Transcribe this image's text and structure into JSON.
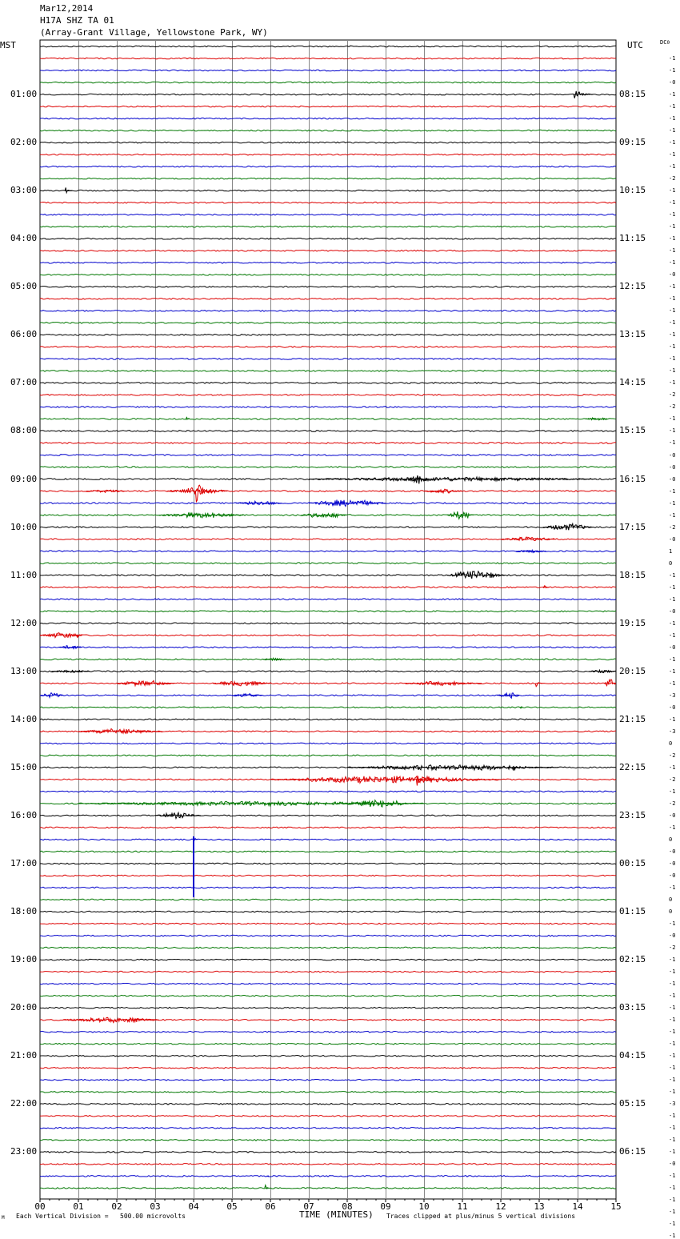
{
  "header": {
    "date": "Mar12,2014",
    "station": "H17A SHZ TA 01",
    "location": "(Array-Grant Village, Yellowstone Park, WY)"
  },
  "left_axis_label": "MST",
  "right_axis_label": "UTC",
  "dc_label": "DC",
  "dc_first": "0",
  "footer": {
    "scale_note": "Each Vertical Division =   500.00 microvolts",
    "xlabel": "TIME (MINUTES)",
    "clip_note": "Traces clipped at plus/minus 5 vertical divisions",
    "corner_mark": "M"
  },
  "chart_data": {
    "type": "seismogram",
    "trace_colors": [
      "#000000",
      "#dd0000",
      "#0000cc",
      "#007700"
    ],
    "rows_per_hour": 4,
    "minutes_per_row": 15,
    "xlim": [
      0,
      15
    ],
    "x_ticks": [
      "00",
      "01",
      "02",
      "03",
      "04",
      "05",
      "06",
      "07",
      "08",
      "09",
      "10",
      "11",
      "12",
      "13",
      "14",
      "15"
    ],
    "left_hour_labels": [
      "01:00",
      "02:00",
      "03:00",
      "04:00",
      "05:00",
      "06:00",
      "07:00",
      "08:00",
      "09:00",
      "10:00",
      "11:00",
      "12:00",
      "13:00",
      "14:00",
      "15:00",
      "16:00",
      "17:00",
      "18:00",
      "19:00",
      "20:00",
      "21:00",
      "22:00",
      "23:00"
    ],
    "right_hour_labels": [
      "08:15",
      "09:15",
      "10:15",
      "11:15",
      "12:15",
      "13:15",
      "14:15",
      "15:15",
      "16:15",
      "17:15",
      "18:15",
      "19:15",
      "20:15",
      "21:15",
      "22:15",
      "23:15",
      "00:15",
      "01:15",
      "02:15",
      "03:15",
      "04:15",
      "05:15",
      "06:15"
    ],
    "dc_offsets": [
      "-1",
      "-1",
      "-0",
      "-1",
      "-1",
      "-1",
      "-1",
      "-1",
      "-1",
      "-1",
      "-2",
      "-1",
      "-1",
      "-1",
      "-1",
      "-1",
      "-1",
      "-1",
      "-0",
      "-1",
      "-1",
      "-1",
      "-1",
      "-1",
      "-1",
      "-1",
      "-1",
      "-1",
      "-2",
      "-2",
      "-1",
      "-1",
      "-1",
      "-0",
      "-0",
      "-0",
      "-1",
      "-1",
      "-1",
      "-2",
      "-0",
      "1",
      "0",
      "-1",
      "-1",
      "-1",
      "-0",
      "-1",
      "-1",
      "-0",
      "-1",
      "-1",
      "-1",
      "-3",
      "-0",
      "-1",
      "-3",
      "0",
      "-2",
      "-1",
      "-2",
      "-1",
      "-2",
      "-0",
      "-1",
      "0",
      "-0",
      "-0",
      "-0",
      "-1",
      "0",
      "0",
      "-1",
      "-0",
      "-2",
      "-1",
      "-1",
      "-1",
      "-1",
      "-1",
      "-1",
      "-1",
      "-1",
      "-1",
      "-1",
      "-1",
      "-1",
      "-3",
      "-1",
      "-1",
      "-1",
      "-1",
      "-0",
      "-1",
      "-1",
      "-1",
      "-1",
      "-1",
      "-1"
    ],
    "events": [
      {
        "row": 4,
        "t": 13.9,
        "dur": 0.5,
        "amp": 14,
        "kind": "spike"
      },
      {
        "row": 12,
        "t": 0.65,
        "dur": 0.2,
        "amp": 6,
        "kind": "spike"
      },
      {
        "row": 31,
        "t": 14.2,
        "dur": 0.6,
        "amp": 2,
        "kind": "burst"
      },
      {
        "row": 31,
        "t": 3.8,
        "dur": 0.1,
        "amp": 5,
        "kind": "spike"
      },
      {
        "row": 36,
        "t": 7.0,
        "dur": 7.5,
        "amp": 3,
        "kind": "burst"
      },
      {
        "row": 36,
        "t": 9.6,
        "dur": 0.5,
        "amp": 7,
        "kind": "burst"
      },
      {
        "row": 37,
        "t": 4.05,
        "dur": 0.4,
        "amp": 25,
        "kind": "spike"
      },
      {
        "row": 37,
        "t": 3.3,
        "dur": 1.6,
        "amp": 5,
        "kind": "burst"
      },
      {
        "row": 37,
        "t": 1.2,
        "dur": 1.0,
        "amp": 2,
        "kind": "burst"
      },
      {
        "row": 37,
        "t": 10.0,
        "dur": 1.0,
        "amp": 3,
        "kind": "burst"
      },
      {
        "row": 38,
        "t": 5.1,
        "dur": 1.2,
        "amp": 3,
        "kind": "burst"
      },
      {
        "row": 38,
        "t": 7.0,
        "dur": 2.0,
        "amp": 5,
        "kind": "burst"
      },
      {
        "row": 39,
        "t": 3.1,
        "dur": 2.2,
        "amp": 4,
        "kind": "burst"
      },
      {
        "row": 39,
        "t": 6.8,
        "dur": 1.2,
        "amp": 4,
        "kind": "burst"
      },
      {
        "row": 39,
        "t": 10.6,
        "dur": 0.7,
        "amp": 6,
        "kind": "burst"
      },
      {
        "row": 40,
        "t": 13.1,
        "dur": 1.3,
        "amp": 5,
        "kind": "burst"
      },
      {
        "row": 41,
        "t": 12.0,
        "dur": 1.4,
        "amp": 3,
        "kind": "burst"
      },
      {
        "row": 42,
        "t": 12.4,
        "dur": 0.8,
        "amp": 2,
        "kind": "burst"
      },
      {
        "row": 44,
        "t": 10.6,
        "dur": 1.5,
        "amp": 6,
        "kind": "burst"
      },
      {
        "row": 45,
        "t": 13.1,
        "dur": 0.15,
        "amp": 6,
        "kind": "spike"
      },
      {
        "row": 49,
        "t": 0.0,
        "dur": 1.1,
        "amp": 4,
        "kind": "burst"
      },
      {
        "row": 49,
        "t": 0.95,
        "dur": 0.15,
        "amp": 8,
        "kind": "spike"
      },
      {
        "row": 50,
        "t": 0.5,
        "dur": 0.6,
        "amp": 3,
        "kind": "burst"
      },
      {
        "row": 51,
        "t": 5.8,
        "dur": 0.6,
        "amp": 2,
        "kind": "burst"
      },
      {
        "row": 52,
        "t": 0.3,
        "dur": 1.0,
        "amp": 2,
        "kind": "burst"
      },
      {
        "row": 52,
        "t": 14.3,
        "dur": 0.7,
        "amp": 2,
        "kind": "burst"
      },
      {
        "row": 53,
        "t": 2.0,
        "dur": 1.5,
        "amp": 4,
        "kind": "burst"
      },
      {
        "row": 53,
        "t": 4.5,
        "dur": 1.5,
        "amp": 4,
        "kind": "burst"
      },
      {
        "row": 53,
        "t": 9.5,
        "dur": 2.0,
        "amp": 3,
        "kind": "burst"
      },
      {
        "row": 53,
        "t": 12.9,
        "dur": 0.2,
        "amp": 6,
        "kind": "spike"
      },
      {
        "row": 53,
        "t": 14.7,
        "dur": 0.3,
        "amp": 8,
        "kind": "burst"
      },
      {
        "row": 54,
        "t": 0.0,
        "dur": 0.6,
        "amp": 4,
        "kind": "burst"
      },
      {
        "row": 54,
        "t": 5.0,
        "dur": 0.8,
        "amp": 3,
        "kind": "burst"
      },
      {
        "row": 54,
        "t": 11.9,
        "dur": 0.6,
        "amp": 4,
        "kind": "burst"
      },
      {
        "row": 55,
        "t": 12.5,
        "dur": 0.1,
        "amp": 6,
        "kind": "spike"
      },
      {
        "row": 57,
        "t": 1.0,
        "dur": 2.2,
        "amp": 4,
        "kind": "burst"
      },
      {
        "row": 60,
        "t": 8.0,
        "dur": 5.5,
        "amp": 4,
        "kind": "burst"
      },
      {
        "row": 60,
        "t": 12.3,
        "dur": 0.3,
        "amp": 7,
        "kind": "spike"
      },
      {
        "row": 61,
        "t": 6.0,
        "dur": 6.0,
        "amp": 5,
        "kind": "burst"
      },
      {
        "row": 61,
        "t": 9.8,
        "dur": 0.6,
        "amp": 13,
        "kind": "spike"
      },
      {
        "row": 63,
        "t": 1.0,
        "dur": 9.0,
        "amp": 3,
        "kind": "burst"
      },
      {
        "row": 63,
        "t": 8.1,
        "dur": 1.5,
        "amp": 6,
        "kind": "burst"
      },
      {
        "row": 64,
        "t": 3.0,
        "dur": 1.2,
        "amp": 4,
        "kind": "burst"
      },
      {
        "row": 66,
        "t": 4.0,
        "dur": 0.12,
        "amp": 12,
        "kind": "spike"
      },
      {
        "row": 81,
        "t": 0.6,
        "dur": 2.5,
        "amp": 4,
        "kind": "burst"
      },
      {
        "row": 94,
        "t": 5.9,
        "dur": 0.08,
        "amp": 4,
        "kind": "spike"
      },
      {
        "row": 95,
        "t": 5.85,
        "dur": 0.12,
        "amp": 8,
        "kind": "spike"
      }
    ],
    "clip_lines": [
      {
        "row": 66,
        "t": 4.0,
        "down_rows": 4.8,
        "color_index": 2
      }
    ]
  }
}
